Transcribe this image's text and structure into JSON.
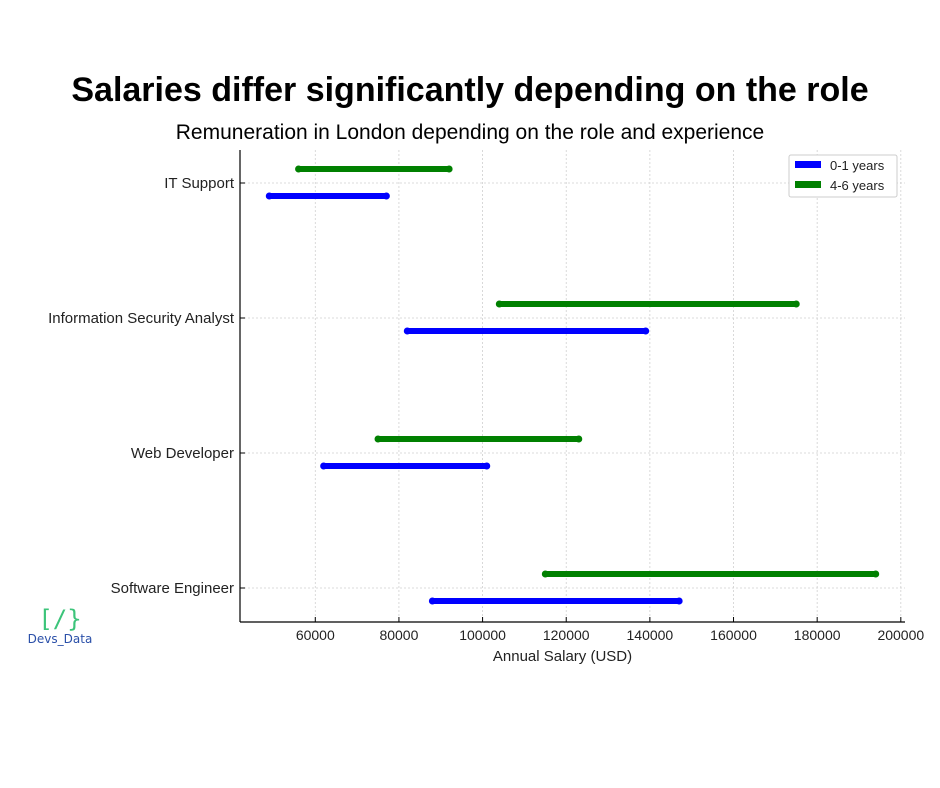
{
  "chart_data": {
    "type": "range-bar",
    "title": "Salaries differ significantly depending on the role",
    "subtitle": "Remuneration in London depending on the role and experience",
    "xlabel": "Annual Salary (USD)",
    "ylabel": "",
    "categories": [
      "IT Support",
      "Information Security Analyst",
      "Web Developer",
      "Software Engineer"
    ],
    "xticks": [
      60000,
      80000,
      100000,
      120000,
      140000,
      160000,
      180000,
      200000
    ],
    "xlim": [
      42000,
      201000
    ],
    "grid": true,
    "legend_position": "top-right",
    "series": [
      {
        "name": "0-1 years",
        "color": "#0000ff",
        "ranges": [
          [
            49000,
            77000
          ],
          [
            82000,
            139000
          ],
          [
            62000,
            101000
          ],
          [
            88000,
            147000
          ]
        ]
      },
      {
        "name": "4-6 years",
        "color": "#008000",
        "ranges": [
          [
            56000,
            92000
          ],
          [
            104000,
            175000
          ],
          [
            75000,
            123000
          ],
          [
            115000,
            194000
          ]
        ]
      }
    ]
  },
  "logo": {
    "glyph": "[/}",
    "name": "Devs_Data"
  }
}
